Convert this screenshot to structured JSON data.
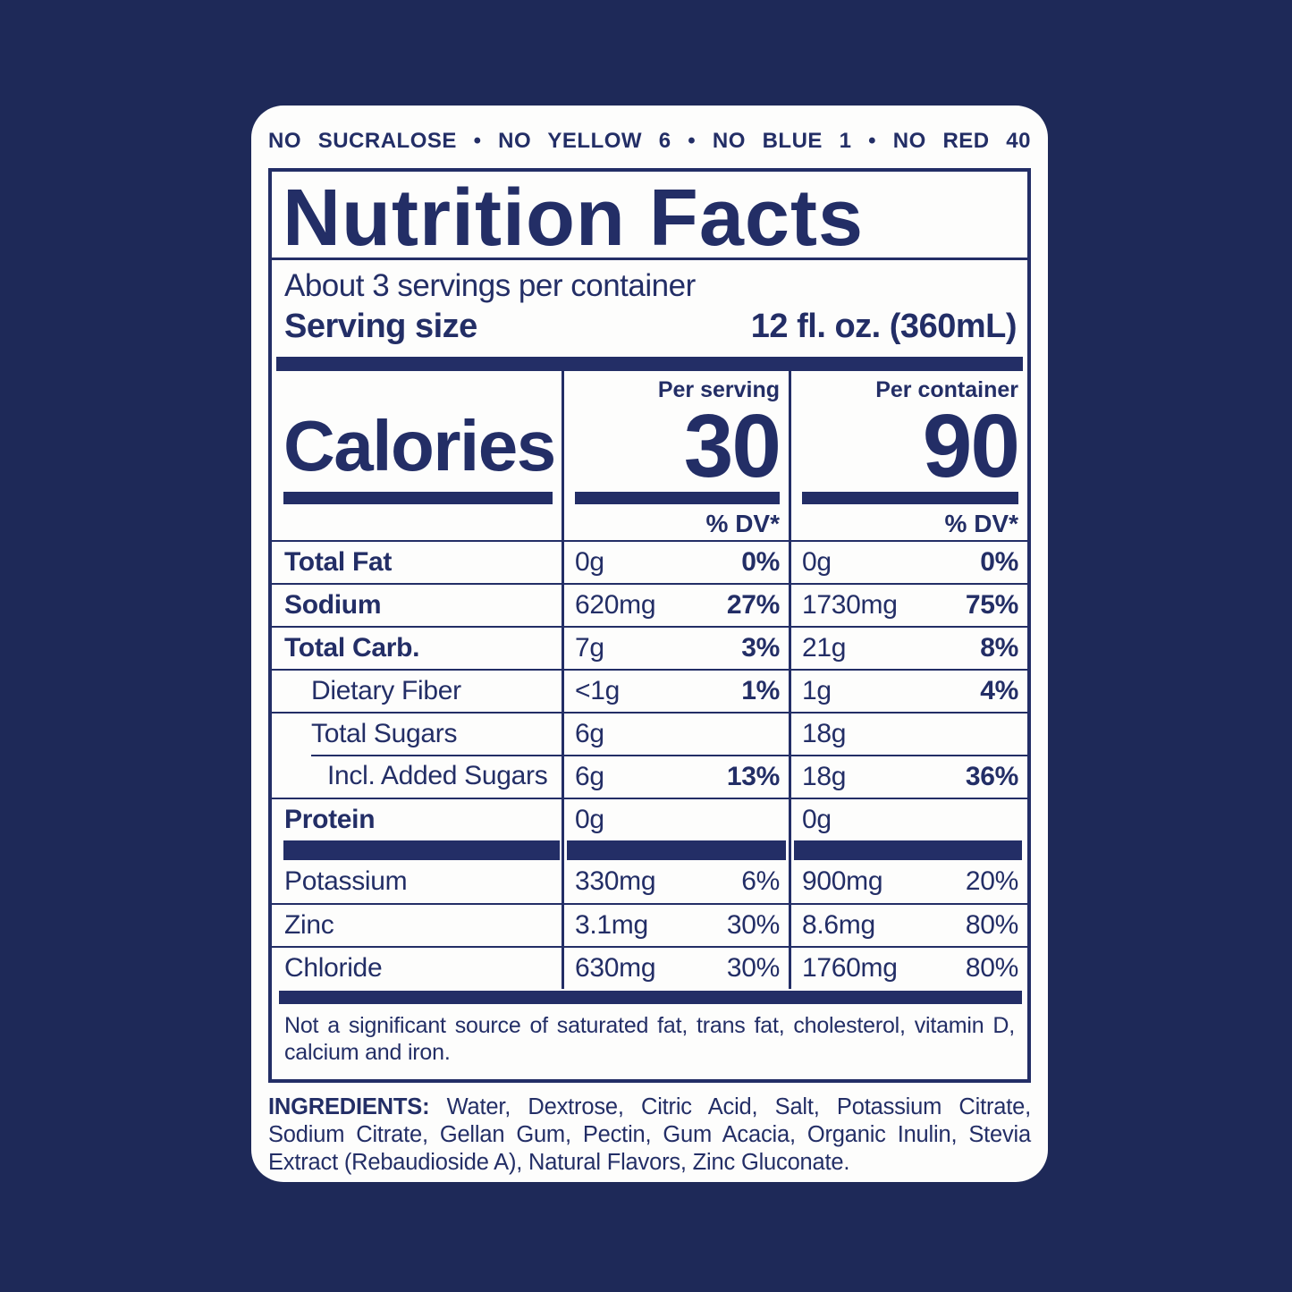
{
  "colors": {
    "background": "#1e2958",
    "ink": "#232e66",
    "card": "#fdfdfc"
  },
  "banner": {
    "text": "NO SUCRALOSE • NO YELLOW 6 • NO BLUE 1 • NO RED 40"
  },
  "title": "Nutrition Facts",
  "servings": {
    "per_container": "About 3 servings per container",
    "serving_size_label": "Serving size",
    "serving_size_value": "12 fl. oz. (360mL)"
  },
  "calories": {
    "label": "Calories",
    "per_serving_header": "Per serving",
    "per_container_header": "Per container",
    "per_serving_value": "30",
    "per_container_value": "90",
    "dv_header": "% DV*"
  },
  "rows": [
    {
      "label": "Total Fat",
      "serving": {
        "amount": "0g",
        "dv": "0%"
      },
      "container": {
        "amount": "0g",
        "dv": "0%"
      }
    },
    {
      "label": "Sodium",
      "serving": {
        "amount": "620mg",
        "dv": "27%"
      },
      "container": {
        "amount": "1730mg",
        "dv": "75%"
      }
    },
    {
      "label": "Total Carb.",
      "serving": {
        "amount": "7g",
        "dv": "3%"
      },
      "container": {
        "amount": "21g",
        "dv": "8%"
      }
    },
    {
      "label": "Dietary Fiber",
      "serving": {
        "amount": "<1g",
        "dv": "1%"
      },
      "container": {
        "amount": "1g",
        "dv": "4%"
      }
    },
    {
      "label": "Total Sugars",
      "serving": {
        "amount": "6g",
        "dv": ""
      },
      "container": {
        "amount": "18g",
        "dv": ""
      }
    },
    {
      "label": "Incl. Added Sugars",
      "serving": {
        "amount": "6g",
        "dv": "13%"
      },
      "container": {
        "amount": "18g",
        "dv": "36%"
      }
    },
    {
      "label": "Protein",
      "serving": {
        "amount": "0g",
        "dv": ""
      },
      "container": {
        "amount": "0g",
        "dv": ""
      }
    }
  ],
  "minerals": [
    {
      "label": "Potassium",
      "serving": {
        "amount": "330mg",
        "dv": "6%"
      },
      "container": {
        "amount": "900mg",
        "dv": "20%"
      }
    },
    {
      "label": "Zinc",
      "serving": {
        "amount": "3.1mg",
        "dv": "30%"
      },
      "container": {
        "amount": "8.6mg",
        "dv": "80%"
      }
    },
    {
      "label": "Chloride",
      "serving": {
        "amount": "630mg",
        "dv": "30%"
      },
      "container": {
        "amount": "1760mg",
        "dv": "80%"
      }
    }
  ],
  "footnote": "Not a significant source of saturated fat, trans fat, cholesterol, vitamin D, calcium and iron.",
  "ingredients": {
    "label": "INGREDIENTS:",
    "text": "Water, Dextrose, Citric Acid, Salt, Potassium Citrate, Sodium Citrate, Gellan Gum, Pectin, Gum Acacia, Organic Inulin, Stevia Extract (Rebaudioside A), Natural Flavors, Zinc Gluconate."
  }
}
